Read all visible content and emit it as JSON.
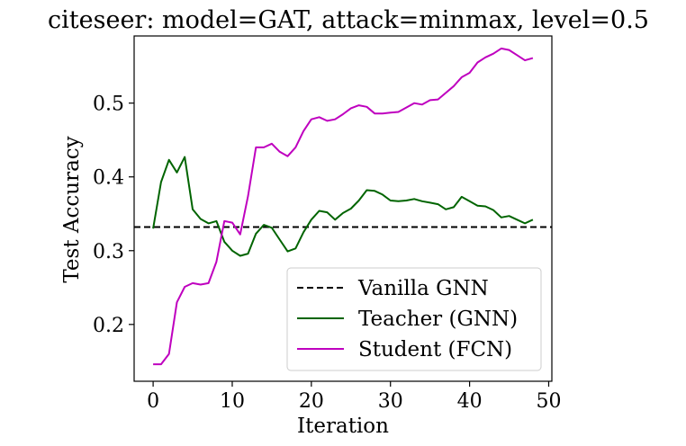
{
  "chart_data": {
    "type": "line",
    "title": "citeseer: model=GAT, attack=minmax, level=0.5",
    "xlabel": "Iteration",
    "ylabel": "Test Accuracy",
    "xlim": [
      -2.4,
      50.4
    ],
    "ylim": [
      0.123,
      0.591
    ],
    "xticks": [
      0,
      10,
      20,
      30,
      40,
      50
    ],
    "yticks": [
      0.2,
      0.3,
      0.4,
      0.5
    ],
    "xtick_labels": [
      "0",
      "10",
      "20",
      "30",
      "40",
      "50"
    ],
    "ytick_labels": [
      "0.2",
      "0.3",
      "0.4",
      "0.5"
    ],
    "grid": false,
    "legend_position": "lower-right",
    "baseline": {
      "name": "Vanilla GNN",
      "value": 0.332,
      "color": "#000000",
      "style": "dashed"
    },
    "series": [
      {
        "name": "Teacher (GNN)",
        "color": "#006400",
        "x": [
          0,
          1,
          2,
          3,
          4,
          5,
          6,
          7,
          8,
          9,
          10,
          11,
          12,
          13,
          14,
          15,
          16,
          17,
          18,
          19,
          20,
          21,
          22,
          23,
          24,
          25,
          26,
          27,
          28,
          29,
          30,
          31,
          32,
          33,
          34,
          35,
          36,
          37,
          38,
          39,
          40,
          41,
          42,
          43,
          44,
          45,
          46,
          47,
          48
        ],
        "y": [
          0.33,
          0.393,
          0.423,
          0.406,
          0.427,
          0.356,
          0.343,
          0.337,
          0.34,
          0.312,
          0.3,
          0.293,
          0.296,
          0.323,
          0.335,
          0.331,
          0.315,
          0.299,
          0.303,
          0.325,
          0.342,
          0.354,
          0.352,
          0.342,
          0.351,
          0.357,
          0.368,
          0.382,
          0.381,
          0.376,
          0.368,
          0.367,
          0.368,
          0.37,
          0.367,
          0.365,
          0.363,
          0.356,
          0.359,
          0.373,
          0.367,
          0.361,
          0.36,
          0.355,
          0.345,
          0.347,
          0.342,
          0.337,
          0.342
        ]
      },
      {
        "name": "Student (FCN)",
        "color": "#bf00bf",
        "x": [
          0,
          1,
          2,
          3,
          4,
          5,
          6,
          7,
          8,
          9,
          10,
          11,
          12,
          13,
          14,
          15,
          16,
          17,
          18,
          19,
          20,
          21,
          22,
          23,
          24,
          25,
          26,
          27,
          28,
          29,
          30,
          31,
          32,
          33,
          34,
          35,
          36,
          37,
          38,
          39,
          40,
          41,
          42,
          43,
          44,
          45,
          46,
          47,
          48
        ],
        "y": [
          0.146,
          0.146,
          0.16,
          0.23,
          0.251,
          0.256,
          0.254,
          0.256,
          0.285,
          0.34,
          0.338,
          0.322,
          0.374,
          0.44,
          0.44,
          0.445,
          0.434,
          0.428,
          0.44,
          0.462,
          0.478,
          0.481,
          0.476,
          0.478,
          0.485,
          0.493,
          0.497,
          0.495,
          0.486,
          0.486,
          0.487,
          0.488,
          0.494,
          0.5,
          0.498,
          0.504,
          0.505,
          0.514,
          0.523,
          0.535,
          0.541,
          0.555,
          0.562,
          0.567,
          0.574,
          0.572,
          0.565,
          0.558,
          0.561
        ]
      }
    ]
  }
}
